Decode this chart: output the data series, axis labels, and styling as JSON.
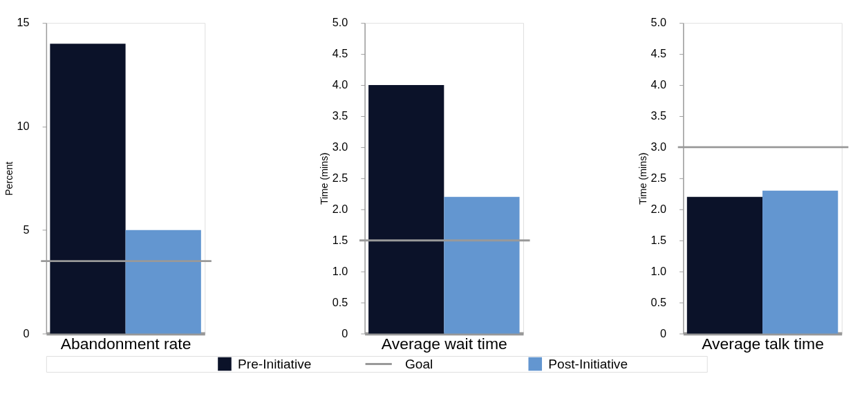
{
  "chart_data": [
    {
      "type": "bar",
      "xlabel": "Abandonment rate",
      "ylabel": "Percent",
      "categories": [
        null
      ],
      "series": [
        {
          "name": "Pre-Initiative",
          "color": "#0b1229",
          "values": [
            14
          ]
        },
        {
          "name": "Post-Initiative",
          "color": "#6396d0",
          "values": [
            5
          ]
        }
      ],
      "ylim": [
        0,
        15
      ],
      "yticks": [
        0,
        5,
        10,
        15
      ],
      "ref_lines": [
        {
          "axis": "y",
          "value": 3.5,
          "label": "Goal",
          "color": "#999999"
        }
      ],
      "grid": false,
      "legend": "bottom"
    },
    {
      "type": "bar",
      "xlabel": "Average wait time",
      "ylabel": "Time (mins)",
      "categories": [
        null
      ],
      "series": [
        {
          "color": "#0b1229",
          "values": [
            4.0
          ]
        },
        {
          "color": "#6396d0",
          "values": [
            2.2
          ]
        }
      ],
      "ylim": [
        0,
        5
      ],
      "yticks": [
        0,
        0.5,
        {
          "value": 1,
          "label": "1.0"
        },
        1.5,
        {
          "value": 2,
          "label": "2.0"
        },
        2.5,
        {
          "value": 3,
          "label": "3.0"
        },
        3.5,
        {
          "value": 4,
          "label": "4.0"
        },
        4.5,
        {
          "value": 5,
          "label": "5.0"
        }
      ],
      "ref_lines": [
        {
          "axis": "y",
          "value": 1.5,
          "color": "#999999"
        }
      ],
      "grid": false
    },
    {
      "type": "bar",
      "xlabel": "Average talk time",
      "ylabel": "Time (mins)",
      "categories": [
        null
      ],
      "series": [
        {
          "color": "#0b1229",
          "values": [
            2.2
          ]
        },
        {
          "color": "#6396d0",
          "values": [
            2.3
          ]
        }
      ],
      "ylim": [
        0,
        5
      ],
      "yticks": [
        0,
        0.5,
        {
          "value": 1,
          "label": "1.0"
        },
        1.5,
        {
          "value": 2,
          "label": "2.0"
        },
        2.5,
        {
          "value": 3,
          "label": "3.0"
        },
        3.5,
        {
          "value": 4,
          "label": "4.0"
        },
        4.5,
        {
          "value": 5,
          "label": "5.0"
        }
      ],
      "ref_lines": [
        {
          "axis": "y",
          "value": 3.0,
          "color": "#999999"
        }
      ],
      "grid": false
    }
  ]
}
